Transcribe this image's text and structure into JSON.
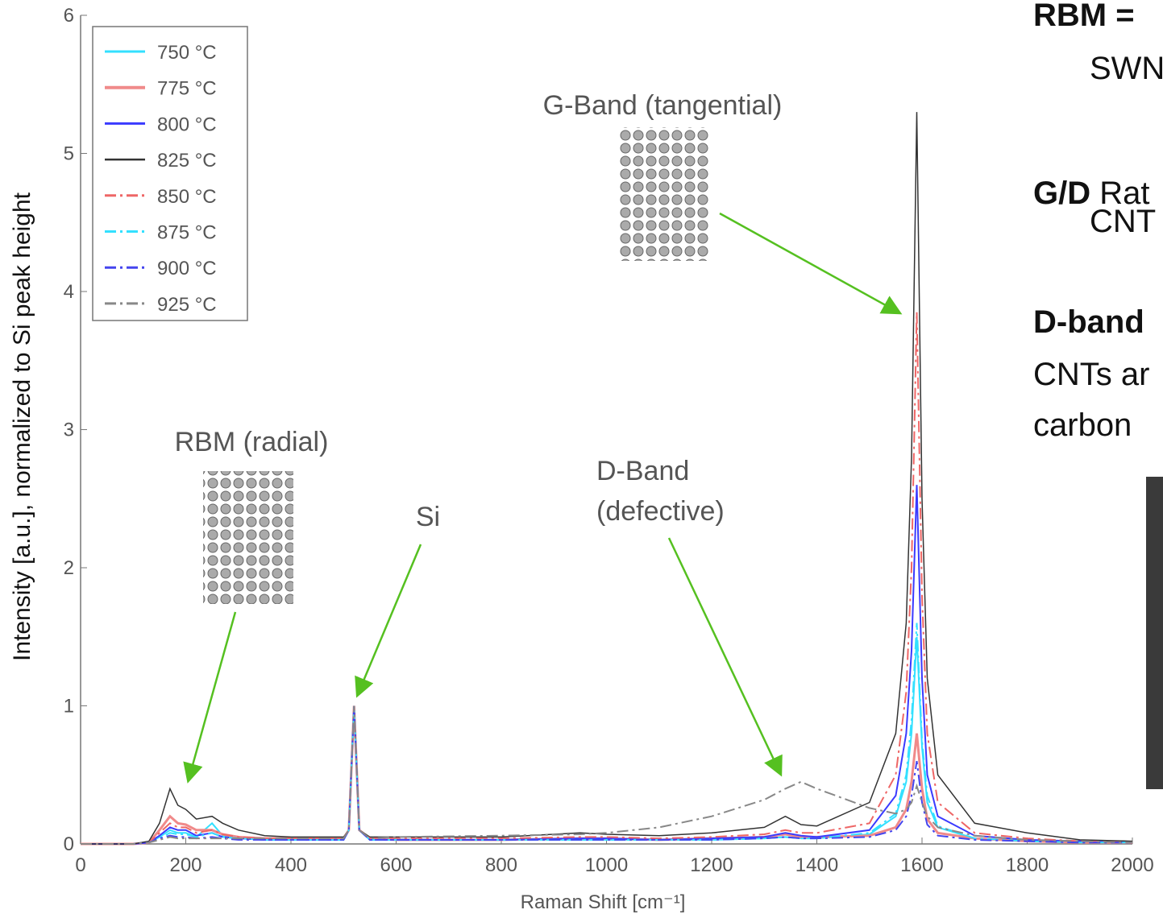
{
  "chart_data": {
    "type": "line",
    "ylabel": "Intensity [a.u.], normalized to Si peak height",
    "xlabel": "Raman Shift [cm⁻¹]",
    "xlim": [
      0,
      2000
    ],
    "ylim": [
      0,
      6
    ],
    "xticks": [
      0,
      200,
      400,
      600,
      800,
      1000,
      1200,
      1400,
      1600,
      1800,
      2000
    ],
    "yticks": [
      0,
      1,
      2,
      3,
      4,
      5,
      6
    ],
    "legend": "upper-left",
    "x": [
      0,
      100,
      130,
      150,
      170,
      185,
      200,
      220,
      250,
      270,
      300,
      350,
      400,
      500,
      510,
      520,
      530,
      550,
      600,
      800,
      950,
      1000,
      1100,
      1200,
      1300,
      1340,
      1370,
      1400,
      1500,
      1550,
      1570,
      1580,
      1590,
      1600,
      1610,
      1630,
      1700,
      1800,
      1900,
      2000
    ],
    "series": [
      {
        "name": "750 °C",
        "color": "#33e0ff",
        "linestyle": "solid",
        "width": 2,
        "values": [
          0,
          0,
          0.01,
          0.05,
          0.1,
          0.08,
          0.08,
          0.05,
          0.15,
          0.06,
          0.04,
          0.03,
          0.03,
          0.03,
          0.1,
          1.0,
          0.1,
          0.03,
          0.03,
          0.03,
          0.03,
          0.03,
          0.03,
          0.03,
          0.04,
          0.05,
          0.04,
          0.04,
          0.07,
          0.2,
          0.45,
          0.8,
          1.5,
          0.7,
          0.3,
          0.12,
          0.04,
          0.02,
          0.01,
          0.01
        ]
      },
      {
        "name": "775 °C",
        "color": "#f08a8a",
        "linestyle": "solid",
        "width": 3,
        "values": [
          0,
          0,
          0.01,
          0.1,
          0.2,
          0.15,
          0.14,
          0.1,
          0.1,
          0.07,
          0.05,
          0.04,
          0.04,
          0.04,
          0.1,
          1.0,
          0.1,
          0.04,
          0.03,
          0.03,
          0.04,
          0.04,
          0.03,
          0.04,
          0.05,
          0.07,
          0.05,
          0.05,
          0.06,
          0.12,
          0.25,
          0.45,
          0.8,
          0.4,
          0.18,
          0.08,
          0.04,
          0.02,
          0.01,
          0.01
        ]
      },
      {
        "name": "800 °C",
        "color": "#3a3aff",
        "linestyle": "solid",
        "width": 2,
        "values": [
          0,
          0,
          0.01,
          0.06,
          0.12,
          0.1,
          0.1,
          0.06,
          0.08,
          0.05,
          0.04,
          0.03,
          0.03,
          0.03,
          0.1,
          1.0,
          0.1,
          0.03,
          0.03,
          0.03,
          0.04,
          0.04,
          0.03,
          0.04,
          0.05,
          0.08,
          0.06,
          0.05,
          0.1,
          0.35,
          0.8,
          1.4,
          2.6,
          1.2,
          0.5,
          0.2,
          0.06,
          0.03,
          0.02,
          0.01
        ]
      },
      {
        "name": "825 °C",
        "color": "#333333",
        "linestyle": "solid",
        "width": 1.5,
        "values": [
          0,
          0,
          0.02,
          0.15,
          0.4,
          0.28,
          0.25,
          0.18,
          0.2,
          0.15,
          0.1,
          0.06,
          0.05,
          0.05,
          0.1,
          1.0,
          0.1,
          0.05,
          0.05,
          0.05,
          0.08,
          0.07,
          0.06,
          0.08,
          0.12,
          0.2,
          0.14,
          0.13,
          0.3,
          0.8,
          1.6,
          2.8,
          5.3,
          2.5,
          1.2,
          0.5,
          0.15,
          0.08,
          0.03,
          0.02
        ]
      },
      {
        "name": "850 °C",
        "color": "#ee6666",
        "linestyle": "dashdot",
        "width": 2,
        "values": [
          0,
          0,
          0.01,
          0.08,
          0.15,
          0.12,
          0.12,
          0.08,
          0.1,
          0.07,
          0.05,
          0.04,
          0.04,
          0.04,
          0.1,
          1.0,
          0.1,
          0.04,
          0.04,
          0.04,
          0.05,
          0.05,
          0.04,
          0.05,
          0.07,
          0.1,
          0.08,
          0.08,
          0.15,
          0.5,
          1.1,
          2.0,
          3.85,
          1.8,
          0.8,
          0.3,
          0.08,
          0.04,
          0.02,
          0.01
        ]
      },
      {
        "name": "875 °C",
        "color": "#33e0ff",
        "linestyle": "dashdot",
        "width": 2,
        "values": [
          0,
          0,
          0.01,
          0.04,
          0.08,
          0.07,
          0.07,
          0.05,
          0.08,
          0.05,
          0.04,
          0.03,
          0.03,
          0.03,
          0.1,
          1.0,
          0.1,
          0.03,
          0.03,
          0.03,
          0.03,
          0.03,
          0.03,
          0.03,
          0.04,
          0.05,
          0.04,
          0.04,
          0.08,
          0.22,
          0.5,
          0.9,
          1.6,
          0.75,
          0.35,
          0.13,
          0.04,
          0.02,
          0.01,
          0.01
        ]
      },
      {
        "name": "900 °C",
        "color": "#4444ee",
        "linestyle": "dashdot",
        "width": 2,
        "values": [
          0,
          0,
          0.01,
          0.04,
          0.06,
          0.05,
          0.05,
          0.04,
          0.05,
          0.04,
          0.03,
          0.03,
          0.03,
          0.03,
          0.1,
          1.0,
          0.1,
          0.03,
          0.03,
          0.03,
          0.03,
          0.03,
          0.03,
          0.03,
          0.04,
          0.05,
          0.04,
          0.04,
          0.05,
          0.1,
          0.2,
          0.35,
          0.6,
          0.3,
          0.14,
          0.06,
          0.03,
          0.02,
          0.01,
          0.01
        ]
      },
      {
        "name": "925 °C",
        "color": "#888888",
        "linestyle": "dashdot",
        "width": 2,
        "values": [
          0,
          0,
          0.01,
          0.03,
          0.05,
          0.04,
          0.04,
          0.04,
          0.04,
          0.04,
          0.04,
          0.04,
          0.04,
          0.04,
          0.1,
          1.0,
          0.1,
          0.04,
          0.05,
          0.06,
          0.07,
          0.08,
          0.12,
          0.2,
          0.32,
          0.4,
          0.45,
          0.4,
          0.26,
          0.22,
          0.25,
          0.3,
          0.42,
          0.3,
          0.2,
          0.12,
          0.06,
          0.03,
          0.02,
          0.01
        ]
      }
    ],
    "annotations": [
      "G-Band (tangential)",
      "RBM (radial)",
      "Si",
      "D-Band",
      "(defective)"
    ]
  },
  "side_text": {
    "rbm_label": "RBM =",
    "rbm_line2": "SWN",
    "gd_label": "G/D",
    "gd_text": "Rat",
    "gd_line2": "CNT",
    "d_label": "D-band",
    "d_line2": "CNTs ar",
    "d_line3": "carbon"
  }
}
